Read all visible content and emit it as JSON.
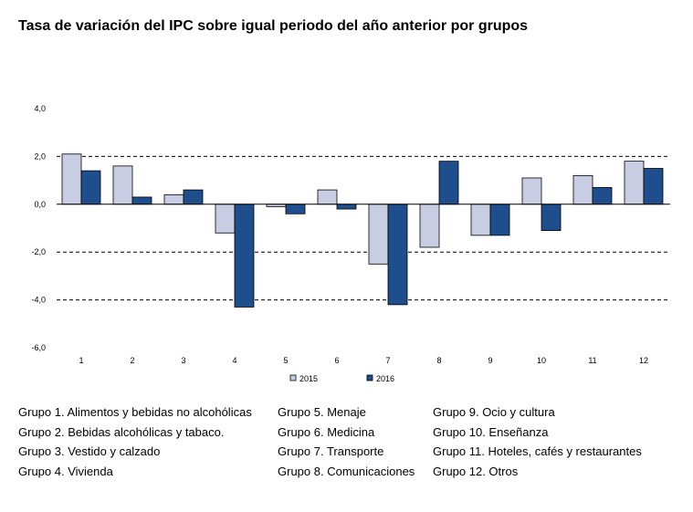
{
  "chart_data": {
    "type": "bar",
    "title": "Tasa de variación del IPC sobre igual periodo del año anterior por grupos",
    "categories": [
      "1",
      "2",
      "3",
      "4",
      "5",
      "6",
      "7",
      "8",
      "9",
      "10",
      "11",
      "12"
    ],
    "series": [
      {
        "name": "2015",
        "color": "#c8cde3",
        "values": [
          2.1,
          1.6,
          0.4,
          -1.2,
          -0.1,
          0.6,
          -2.5,
          -1.8,
          -1.3,
          1.1,
          1.2,
          1.8
        ]
      },
      {
        "name": "2016",
        "color": "#1f4e8c",
        "values": [
          1.4,
          0.3,
          0.6,
          -4.3,
          -0.4,
          -0.2,
          -4.2,
          1.8,
          -1.3,
          -1.1,
          0.7,
          1.5
        ]
      }
    ],
    "ylim": [
      -6.0,
      4.0
    ],
    "yticks": [
      "-6,0",
      "-4,0",
      "-2,0",
      "0,0",
      "2,0",
      "4,0"
    ],
    "ytick_values": [
      -6,
      -4,
      -2,
      0,
      2,
      4
    ],
    "dashed_gridlines": [
      2,
      -2,
      -4
    ],
    "legend_placement": "bottom-center",
    "xlabel": "",
    "ylabel": ""
  },
  "group_legend": [
    [
      "Grupo 1. Alimentos y bebidas no alcohólicas",
      "Grupo 2. Bebidas alcohólicas y  tabaco.",
      "Grupo 3. Vestido y calzado",
      "Grupo 4. Vivienda"
    ],
    [
      "Grupo 5. Menaje",
      "Grupo 6. Medicina",
      "Grupo 7. Transporte",
      "Grupo 8. Comunicaciones"
    ],
    [
      "Grupo 9. Ocio y cultura",
      "Grupo 10. Enseñanza",
      "Grupo 11. Hoteles, cafés y restaurantes",
      "Grupo 12. Otros"
    ]
  ]
}
